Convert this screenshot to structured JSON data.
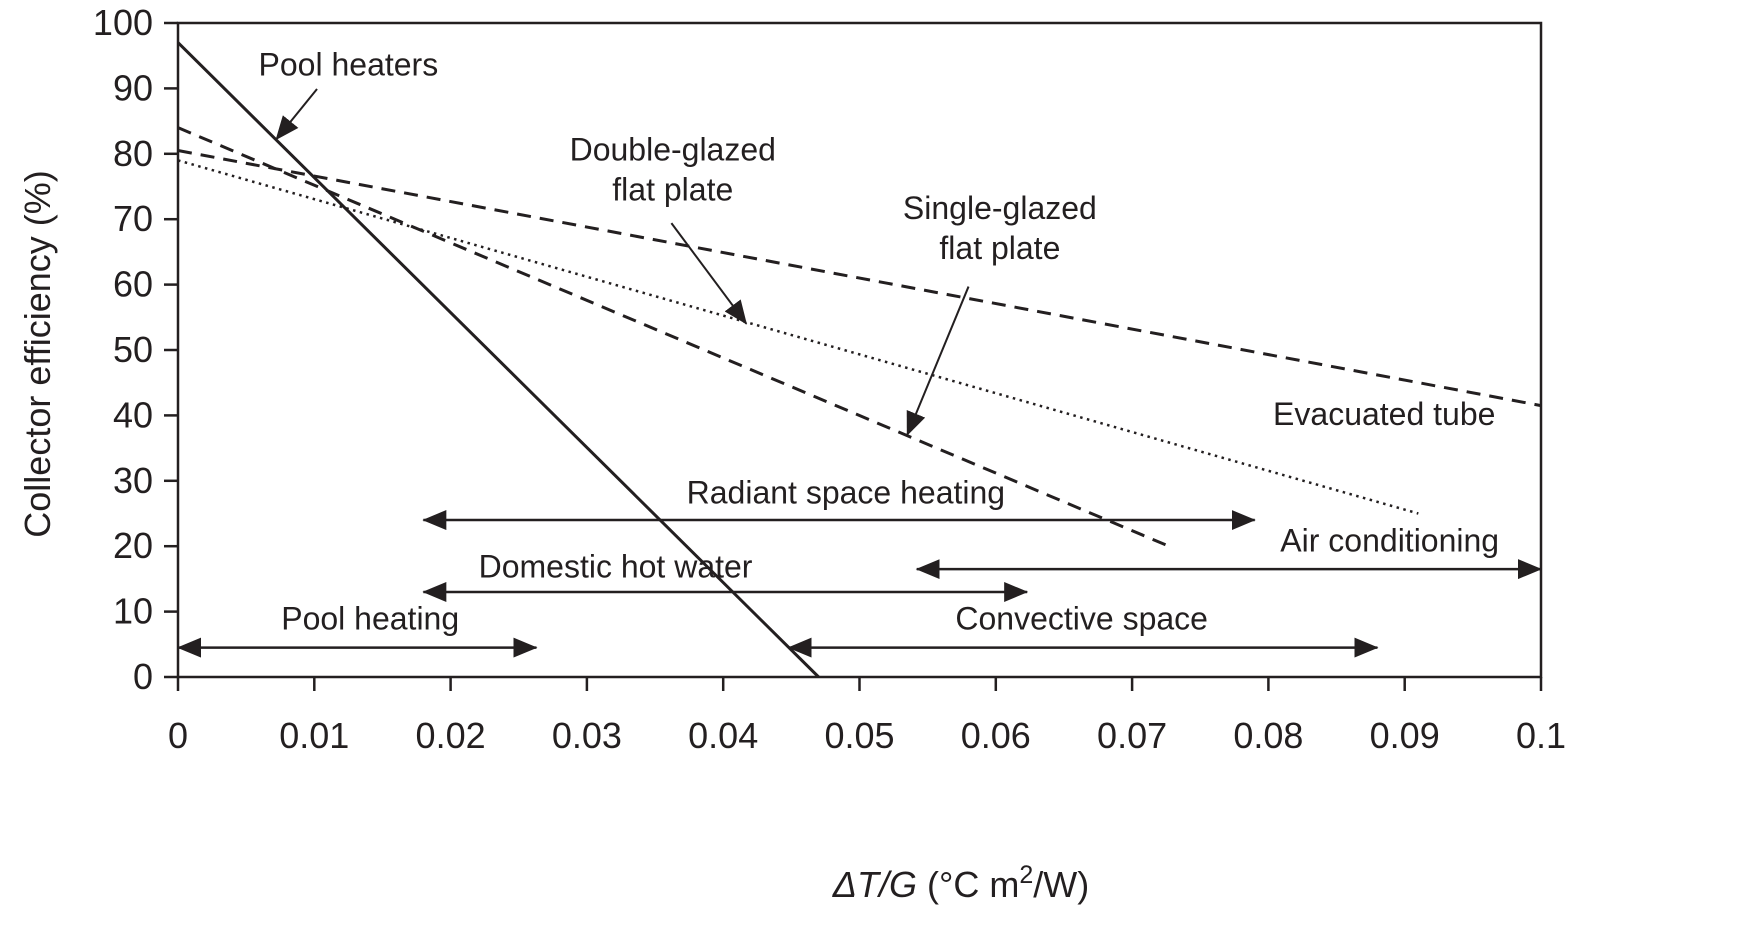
{
  "chart_data": {
    "type": "line",
    "xlabel": {
      "prefix": "ΔT/G",
      "unit_pre": " (°C m",
      "unit_sup": "2",
      "unit_post": "/W)"
    },
    "ylabel": "Collector efficiency (%)",
    "xlim": [
      0,
      0.1
    ],
    "ylim": [
      0,
      100
    ],
    "x_ticks": [
      0,
      0.01,
      0.02,
      0.03,
      0.04,
      0.05,
      0.06,
      0.07,
      0.08,
      0.09,
      0.1
    ],
    "x_tick_labels": [
      "0",
      "0.01",
      "0.02",
      "0.03",
      "0.04",
      "0.05",
      "0.06",
      "0.07",
      "0.08",
      "0.09",
      "0.1"
    ],
    "y_ticks": [
      0,
      10,
      20,
      30,
      40,
      50,
      60,
      70,
      80,
      90,
      100
    ],
    "y_tick_labels": [
      "0",
      "10",
      "20",
      "30",
      "40",
      "50",
      "60",
      "70",
      "80",
      "90",
      "100"
    ],
    "grid": false,
    "legend": "none",
    "series": [
      {
        "key": "pool",
        "style": "solid",
        "color": "#231f20",
        "x": [
          0,
          0.047
        ],
        "y": [
          97,
          0
        ]
      },
      {
        "key": "single",
        "style": "dashed",
        "color": "#231f20",
        "x": [
          0,
          0.0727
        ],
        "y": [
          84,
          20
        ]
      },
      {
        "key": "double",
        "style": "dotted",
        "color": "#231f20",
        "x": [
          0,
          0.091
        ],
        "y": [
          79,
          25
        ]
      },
      {
        "key": "evacuated",
        "style": "dashed",
        "color": "#231f20",
        "x": [
          0,
          0.1
        ],
        "y": [
          80.5,
          41.5
        ]
      }
    ],
    "curve_labels": [
      {
        "lines": [
          "Pool heaters"
        ],
        "anchor": "middle",
        "x": 0.0125,
        "y": 92,
        "arrow": {
          "from": [
            0.0102,
            89.9
          ],
          "to": [
            0.0072,
            82.2
          ]
        }
      },
      {
        "lines": [
          "Double-glazed",
          "flat plate"
        ],
        "anchor": "middle",
        "x": 0.0363,
        "y": 79,
        "arrow": {
          "from": [
            0.0362,
            69.4
          ],
          "to": [
            0.0417,
            54
          ]
        }
      },
      {
        "lines": [
          "Single-glazed",
          "flat plate"
        ],
        "anchor": "middle",
        "x": 0.0603,
        "y": 70,
        "arrow": {
          "from": [
            0.058,
            59.7
          ],
          "to": [
            0.0535,
            37
          ]
        }
      },
      {
        "lines": [
          "Evacuated tube"
        ],
        "anchor": "middle",
        "x": 0.0885,
        "y": 38.5,
        "arrow": null
      }
    ],
    "range_annotations": [
      {
        "label": "Radiant space heating",
        "x_start": 0.018,
        "x_end": 0.079,
        "y": 24,
        "label_x": 0.049,
        "label_y": 26.5
      },
      {
        "label": "Air conditioning",
        "x_start": 0.0542,
        "x_end": 0.1,
        "y": 16.5,
        "label_x": 0.0889,
        "label_y": 19.2
      },
      {
        "label": "Domestic hot water",
        "x_start": 0.018,
        "x_end": 0.0623,
        "y": 13,
        "label_x": 0.0321,
        "label_y": 15.2
      },
      {
        "label": "Pool heating",
        "x_start": 0,
        "x_end": 0.0263,
        "y": 4.5,
        "label_x": 0.0141,
        "label_y": 7.3
      },
      {
        "label": "Convective space",
        "x_start": 0.0448,
        "x_end": 0.088,
        "y": 4.5,
        "label_x": 0.0663,
        "label_y": 7.3
      }
    ]
  }
}
